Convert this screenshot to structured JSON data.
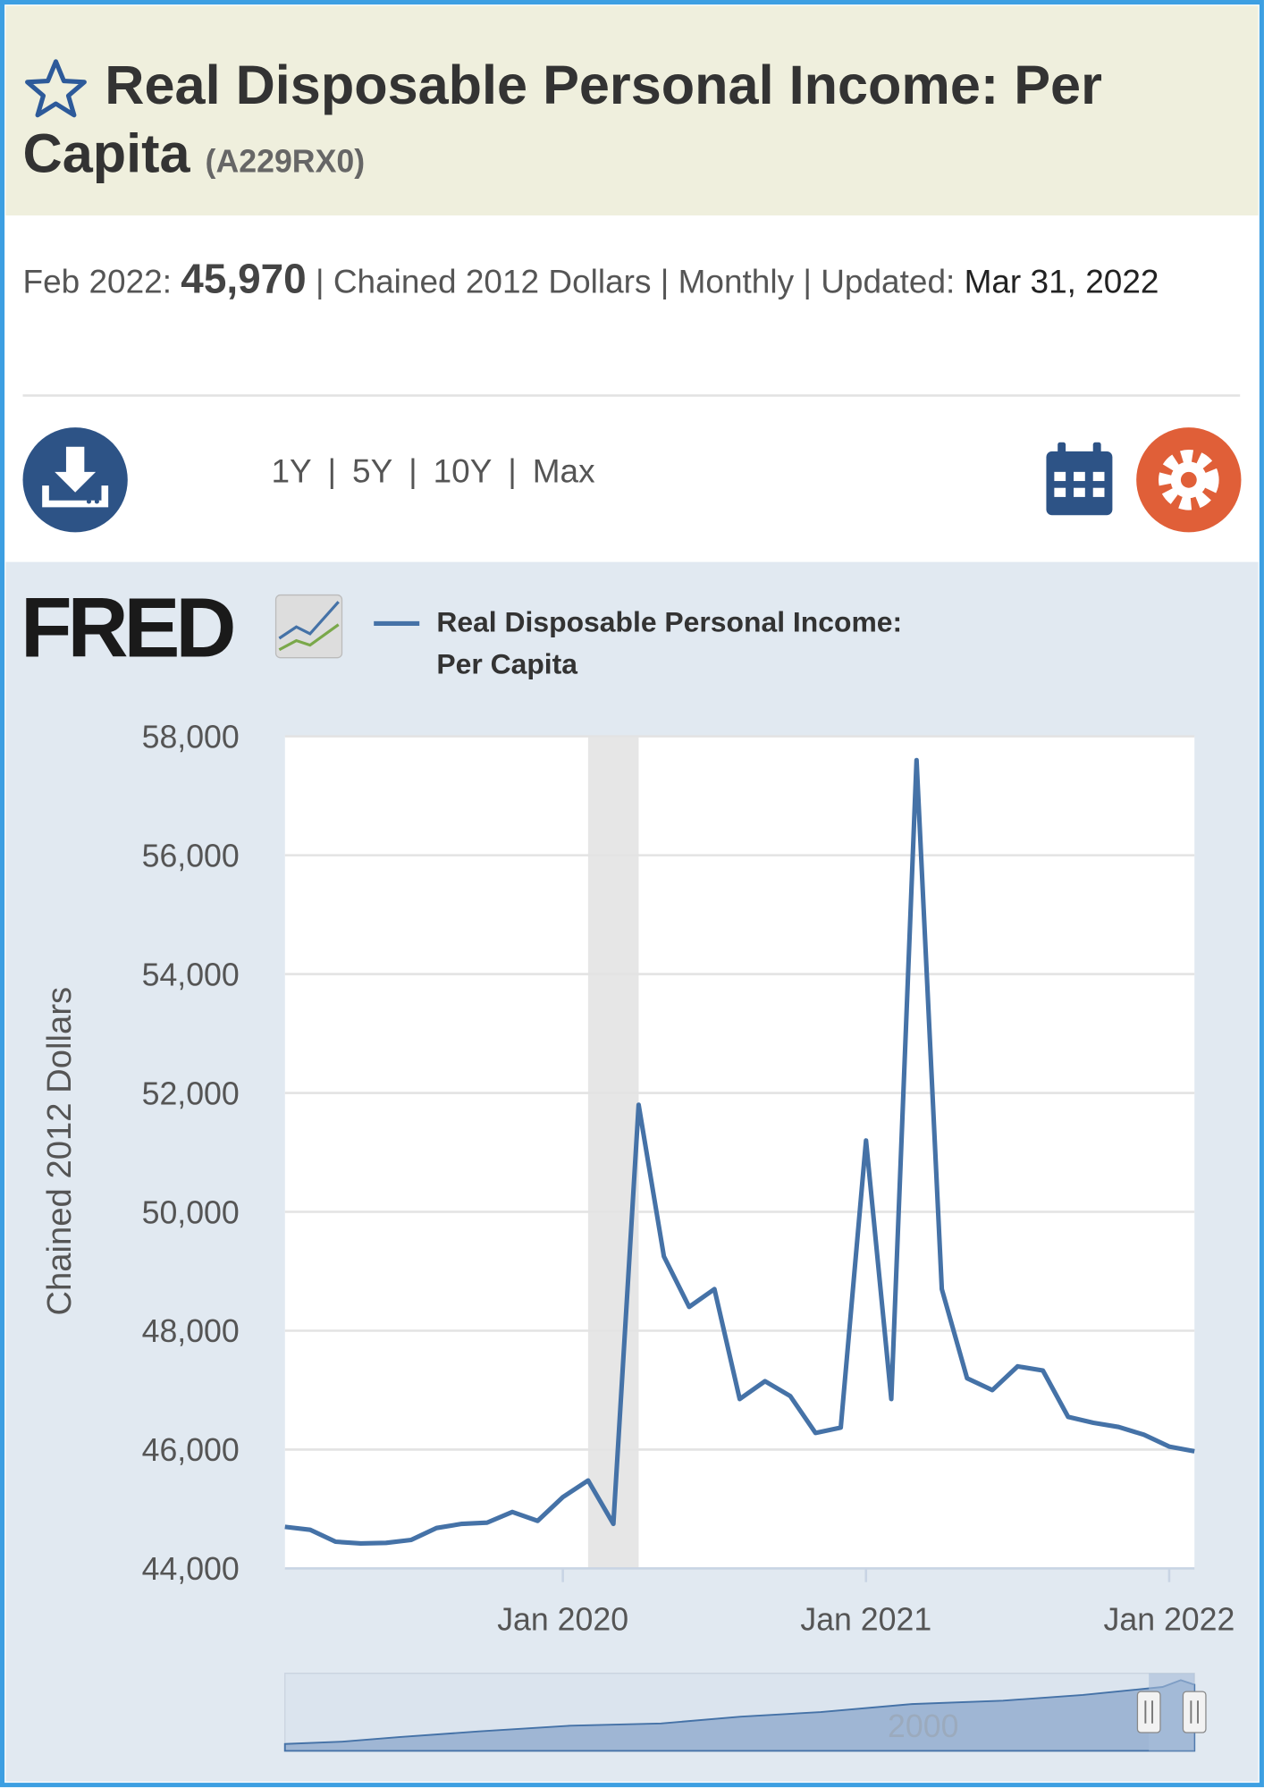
{
  "header": {
    "title": "Real Disposable Personal Income: Per Capita",
    "series_id": "(A229RX0)"
  },
  "summary": {
    "date_label": "Feb 2022:",
    "value": "45,970",
    "details": "| Chained 2012 Dollars | Monthly | Updated:",
    "updated": "Mar 31, 2022"
  },
  "range_buttons": [
    "1Y",
    "5Y",
    "10Y",
    "Max"
  ],
  "range_separator": "|",
  "logo": "FRED",
  "navigator": {
    "label": "2000"
  },
  "chart_data": {
    "type": "line",
    "y_label": "Chained 2012 Dollars",
    "x": [
      "2019-02",
      "2019-03",
      "2019-04",
      "2019-05",
      "2019-06",
      "2019-07",
      "2019-08",
      "2019-09",
      "2019-10",
      "2019-11",
      "2019-12",
      "2020-01",
      "2020-02",
      "2020-03",
      "2020-04",
      "2020-05",
      "2020-06",
      "2020-07",
      "2020-08",
      "2020-09",
      "2020-10",
      "2020-11",
      "2020-12",
      "2021-01",
      "2021-02",
      "2021-03",
      "2021-04",
      "2021-05",
      "2021-06",
      "2021-07",
      "2021-08",
      "2021-09",
      "2021-10",
      "2021-11",
      "2021-12",
      "2022-01",
      "2022-02"
    ],
    "series": [
      {
        "name": "Real Disposable Personal Income: Per Capita",
        "color": "#4572a7",
        "values": [
          44700,
          44650,
          44450,
          44420,
          44430,
          44480,
          44680,
          44750,
          44770,
          44950,
          44800,
          45200,
          45480,
          44750,
          51800,
          49250,
          48400,
          48700,
          46850,
          47150,
          46900,
          46280,
          46370,
          51200,
          46850,
          57600,
          48700,
          47200,
          47000,
          47400,
          47330,
          46550,
          46450,
          46380,
          46250,
          46050,
          45970
        ]
      }
    ],
    "shading": [
      {
        "start": "2020-02",
        "end": "2020-04",
        "color": "#e6e6e6"
      }
    ],
    "xlim": [
      "2019-02",
      "2022-02"
    ],
    "xticks": [
      {
        "value": "2020-01",
        "label": "Jan 2020"
      },
      {
        "value": "2021-01",
        "label": "Jan 2021"
      },
      {
        "value": "2022-01",
        "label": "Jan 2022"
      }
    ],
    "ylim": [
      44000,
      58000
    ],
    "yticks": [
      {
        "value": 44000,
        "label": "44,000"
      },
      {
        "value": 46000,
        "label": "46,000"
      },
      {
        "value": 48000,
        "label": "48,000"
      },
      {
        "value": 50000,
        "label": "50,000"
      },
      {
        "value": 52000,
        "label": "52,000"
      },
      {
        "value": 54000,
        "label": "54,000"
      },
      {
        "value": 56000,
        "label": "56,000"
      },
      {
        "value": 58000,
        "label": "58,000"
      }
    ],
    "grid": true
  }
}
